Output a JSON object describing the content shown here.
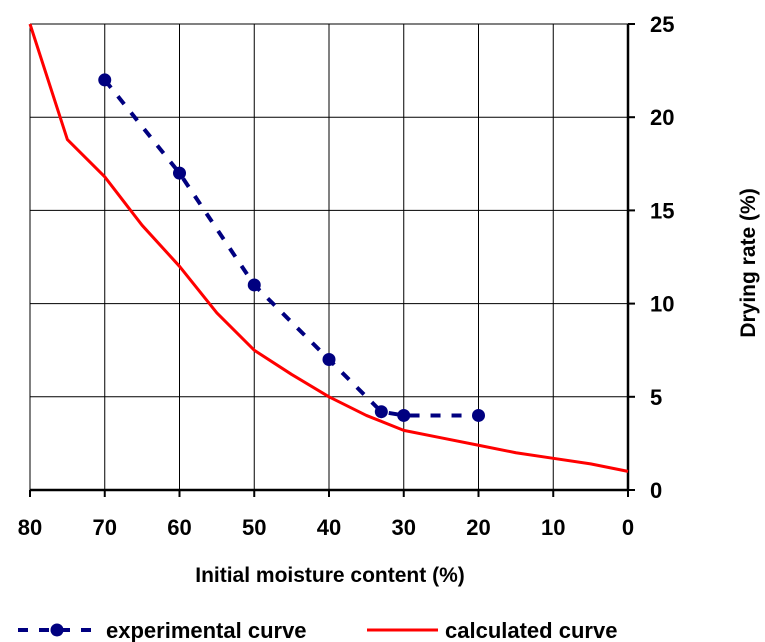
{
  "chart_data": {
    "type": "line",
    "title": "",
    "xlabel": "Initial moisture content (%)",
    "ylabel": "Drying rate (%)",
    "xlim": [
      80,
      0
    ],
    "ylim": [
      0,
      25
    ],
    "x_reversed": true,
    "y_axis_position": "right",
    "x_ticks": [
      80,
      70,
      60,
      50,
      40,
      30,
      20,
      10,
      0
    ],
    "y_ticks": [
      0,
      5,
      10,
      15,
      20,
      25
    ],
    "grid": true,
    "legend_position": "bottom",
    "series": [
      {
        "name": "experimental curve",
        "style": "dashed-with-markers",
        "color": "#000080",
        "x": [
          70,
          60,
          50,
          40,
          33,
          30,
          20
        ],
        "y": [
          22,
          17,
          11,
          7,
          4.2,
          4,
          4
        ]
      },
      {
        "name": "calculated curve",
        "style": "solid",
        "color": "#ff0000",
        "x": [
          80,
          75,
          70,
          65,
          60,
          55,
          50,
          45,
          40,
          35,
          30,
          25,
          20,
          15,
          10,
          5,
          0
        ],
        "y": [
          25,
          18.8,
          16.8,
          14.2,
          12,
          9.5,
          7.5,
          6.2,
          5,
          4,
          3.2,
          2.8,
          2.4,
          2,
          1.7,
          1.4,
          1.0
        ]
      }
    ]
  }
}
